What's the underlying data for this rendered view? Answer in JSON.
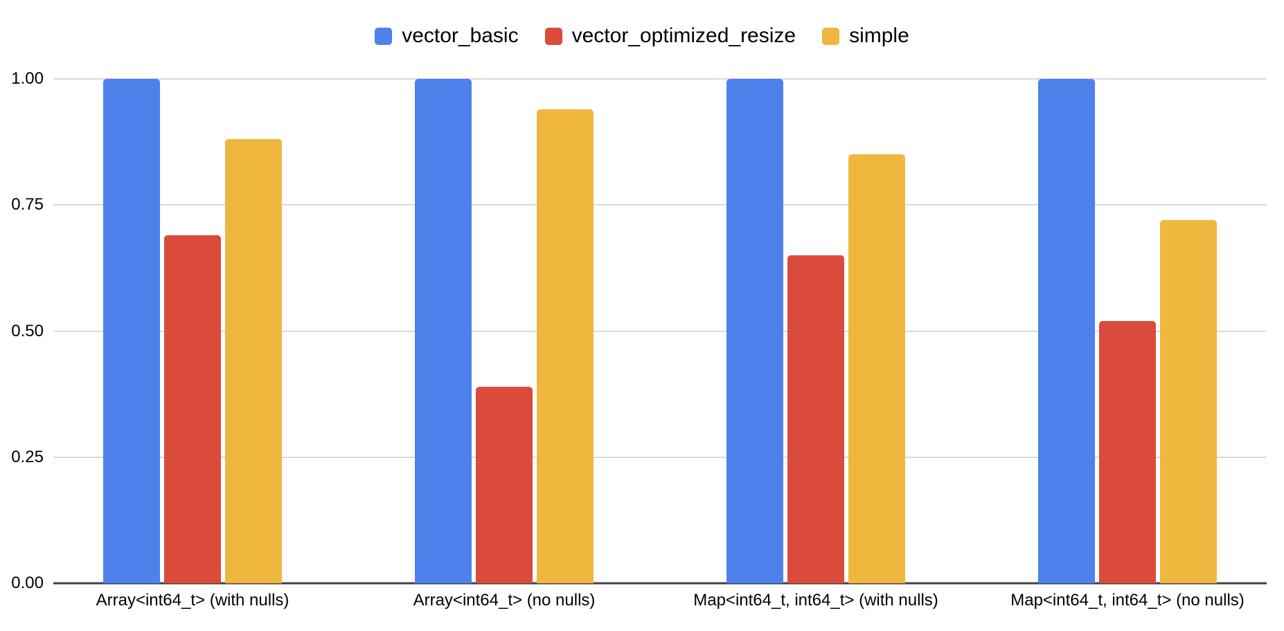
{
  "chart_data": {
    "type": "bar",
    "title": "",
    "xlabel": "",
    "ylabel": "",
    "categories": [
      "Array<int64_t> (with nulls)",
      "Array<int64_t> (no nulls)",
      "Map<int64_t, int64_t> (with nulls)",
      "Map<int64_t, int64_t> (no nulls)"
    ],
    "series": [
      {
        "name": "vector_basic",
        "color": "#4e81ec",
        "values": [
          1.0,
          1.0,
          1.0,
          1.0
        ]
      },
      {
        "name": "vector_optimized_resize",
        "color": "#da4b3b",
        "values": [
          0.69,
          0.39,
          0.65,
          0.52
        ]
      },
      {
        "name": "simple",
        "color": "#f0b73e",
        "values": [
          0.88,
          0.94,
          0.85,
          0.72
        ]
      }
    ],
    "ylim": [
      0,
      1
    ],
    "y_ticks_top_to_bottom": [
      "1.00",
      "0.75",
      "0.50",
      "0.25",
      "0.00"
    ],
    "grid": "horizontal",
    "legend_position": "top-center"
  },
  "style_colors": {
    "background": "#ffffff",
    "gridline": "#d9d9d9",
    "axis_line": "#424242",
    "text": "#000000"
  }
}
